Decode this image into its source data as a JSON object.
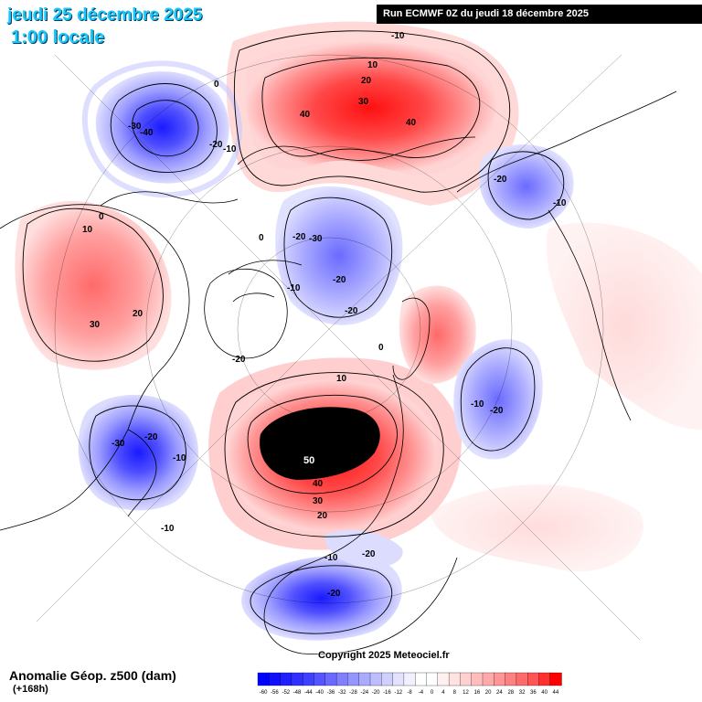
{
  "header": {
    "date": "jeudi 25 décembre 2025",
    "local_time": "1:00 locale",
    "run_info": "Run ECMWF 0Z du jeudi 18 décembre 2025"
  },
  "footer": {
    "title": "Anomalie Géop. z500 (dam)",
    "lead_time": "(+168h)",
    "copyright": "Copyright 2025 Meteociel.fr"
  },
  "colors": {
    "deep_blue": "#1c1cff",
    "mid_blue": "#6b6bff",
    "light_blue": "#c9c9ff",
    "light_red": "#ffc9c9",
    "mid_red": "#ff6b6b",
    "deep_red": "#ff1c1c",
    "extreme": "#000000"
  },
  "scale": {
    "ticks": [
      "-60",
      "-56",
      "-52",
      "-48",
      "-44",
      "-40",
      "-36",
      "-32",
      "-28",
      "-24",
      "-20",
      "-16",
      "-12",
      "-8",
      "-4",
      "0",
      "4",
      "8",
      "12",
      "16",
      "20",
      "24",
      "28",
      "32",
      "36",
      "40",
      "44"
    ],
    "colors": [
      "#0000ff",
      "#1010ff",
      "#2020ff",
      "#3030ff",
      "#4040ff",
      "#5555ff",
      "#6a6aff",
      "#8080ff",
      "#9595ff",
      "#aaaaff",
      "#bdbdff",
      "#d0d0ff",
      "#e2e2ff",
      "#f0f0ff",
      "#ffffff",
      "#ffffff",
      "#fff0f0",
      "#ffe2e2",
      "#ffd0d0",
      "#ffbdbd",
      "#ffaaaa",
      "#ff9595",
      "#ff8080",
      "#ff6a6a",
      "#ff5555",
      "#ff3030",
      "#ff0000"
    ]
  },
  "contour_labels": [
    {
      "text": "-10",
      "kind": "neg"
    },
    {
      "text": "10",
      "kind": "pos"
    },
    {
      "text": "20",
      "kind": "pos"
    },
    {
      "text": "30",
      "kind": "pos"
    },
    {
      "text": "40",
      "kind": "pos"
    },
    {
      "text": "40",
      "kind": "pos"
    },
    {
      "text": "0",
      "kind": "zero"
    },
    {
      "text": "-30",
      "kind": "neg"
    },
    {
      "text": "-40",
      "kind": "neg"
    },
    {
      "text": "-20",
      "kind": "neg"
    },
    {
      "text": "-10",
      "kind": "neg"
    },
    {
      "text": "-20",
      "kind": "neg"
    },
    {
      "text": "-10",
      "kind": "neg"
    },
    {
      "text": "0",
      "kind": "zero"
    },
    {
      "text": "10",
      "kind": "pos"
    },
    {
      "text": "-20",
      "kind": "neg"
    },
    {
      "text": "-30",
      "kind": "neg"
    },
    {
      "text": "0",
      "kind": "zero"
    },
    {
      "text": "-20",
      "kind": "neg"
    },
    {
      "text": "-20",
      "kind": "neg"
    },
    {
      "text": "-10",
      "kind": "neg"
    },
    {
      "text": "20",
      "kind": "pos"
    },
    {
      "text": "30",
      "kind": "pos"
    },
    {
      "text": "0",
      "kind": "zero"
    },
    {
      "text": "-20",
      "kind": "neg"
    },
    {
      "text": "10",
      "kind": "pos"
    },
    {
      "text": "-10",
      "kind": "neg"
    },
    {
      "text": "-20",
      "kind": "neg"
    },
    {
      "text": "-30",
      "kind": "neg"
    },
    {
      "text": "-20",
      "kind": "neg"
    },
    {
      "text": "-10",
      "kind": "neg"
    },
    {
      "text": "50",
      "kind": "extreme"
    },
    {
      "text": "40",
      "kind": "pos"
    },
    {
      "text": "30",
      "kind": "pos"
    },
    {
      "text": "20",
      "kind": "pos"
    },
    {
      "text": "-10",
      "kind": "neg"
    },
    {
      "text": "-10",
      "kind": "neg"
    },
    {
      "text": "-20",
      "kind": "neg"
    },
    {
      "text": "-20",
      "kind": "neg"
    }
  ]
}
